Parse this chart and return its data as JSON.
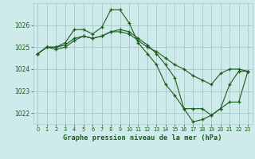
{
  "title": "Graphe pression niveau de la mer (hPa)",
  "bg_color": "#ceeaea",
  "grid_color": "#aacccc",
  "line_color": "#1a5c1a",
  "series": [
    {
      "x": [
        0,
        1,
        2,
        3,
        4,
        5,
        6,
        7,
        8,
        9,
        10,
        11,
        12,
        13,
        14,
        15,
        16,
        17,
        18,
        19,
        20,
        21,
        22,
        23
      ],
      "y": [
        1024.7,
        1025.0,
        1025.0,
        1025.2,
        1025.8,
        1025.8,
        1025.6,
        1025.9,
        1026.7,
        1026.7,
        1026.1,
        1025.2,
        1024.7,
        1024.2,
        1023.3,
        1022.8,
        1022.2,
        1022.2,
        1022.2,
        1021.9,
        1022.2,
        1023.3,
        1023.9,
        1023.9
      ]
    },
    {
      "x": [
        0,
        1,
        2,
        3,
        4,
        5,
        6,
        7,
        8,
        9,
        10,
        11,
        12,
        13,
        14,
        15,
        16,
        17,
        18,
        19,
        20,
        21,
        22,
        23
      ],
      "y": [
        1024.7,
        1025.0,
        1024.9,
        1025.0,
        1025.3,
        1025.5,
        1025.4,
        1025.5,
        1025.7,
        1025.7,
        1025.6,
        1025.3,
        1025.0,
        1024.8,
        1024.5,
        1024.2,
        1024.0,
        1023.7,
        1023.5,
        1023.3,
        1023.8,
        1024.0,
        1024.0,
        1023.9
      ]
    },
    {
      "x": [
        0,
        1,
        2,
        3,
        4,
        5,
        6,
        7,
        8,
        9,
        10,
        11,
        12,
        13,
        14,
        15,
        16,
        17,
        18,
        19,
        20,
        21,
        22,
        23
      ],
      "y": [
        1024.7,
        1025.0,
        1025.0,
        1025.1,
        1025.4,
        1025.5,
        1025.4,
        1025.5,
        1025.7,
        1025.8,
        1025.7,
        1025.4,
        1025.1,
        1024.7,
        1024.2,
        1023.6,
        1022.2,
        1021.6,
        1021.7,
        1021.9,
        1022.2,
        1022.5,
        1022.5,
        1023.9
      ]
    }
  ],
  "ylim": [
    1021.5,
    1027.0
  ],
  "yticks": [
    1022,
    1023,
    1024,
    1025,
    1026
  ],
  "xlim": [
    -0.5,
    23.5
  ],
  "xticks": [
    0,
    1,
    2,
    3,
    4,
    5,
    6,
    7,
    8,
    9,
    10,
    11,
    12,
    13,
    14,
    15,
    16,
    17,
    18,
    19,
    20,
    21,
    22,
    23
  ],
  "xtick_labels": [
    "0",
    "1",
    "2",
    "3",
    "4",
    "5",
    "6",
    "7",
    "8",
    "9",
    "10",
    "11",
    "12",
    "13",
    "14",
    "15",
    "16",
    "17",
    "18",
    "19",
    "20",
    "21",
    "22",
    "23"
  ]
}
